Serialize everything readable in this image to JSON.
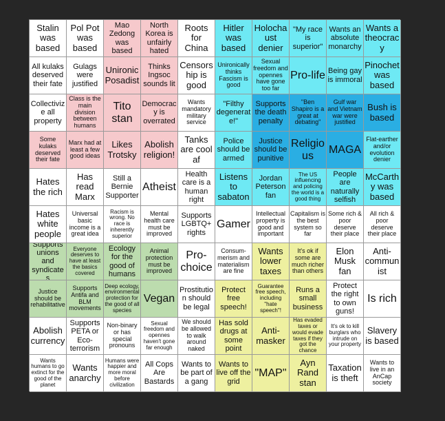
{
  "grid": {
    "rows": [
      [
        "Stalin was based",
        "Pol Pot was based",
        "Mao Zedong was based",
        "North Korea is unfairly hated",
        "Roots for China",
        "Hitler was based",
        "Holochaust denier",
        "\"My race is superior\"",
        "Wants an absolute monarchy",
        "Wants a theocracy"
      ],
      [
        "All kulaks deserved their fate",
        "Gulags were justified",
        "Unironic Posadist",
        "Thinks Ingsoc sounds lit",
        "Censorship is good",
        "Unironically thinks Fascism is good",
        "Sexual freedom and opennes have gone too far",
        "Pro-life",
        "Being gay is immoral",
        "Pinochet was based"
      ],
      [
        "Collectivize all property",
        "Class is the main division between humans",
        "Tito stan",
        "Democracy is overrated",
        "Wants mandatory military service",
        "\"Filthy degenerate!\"",
        "Supports the death penalty",
        "\"Ben Shapiro is a great at debating\"",
        "Gulf war and Vietnam war were justified",
        "Bush is based"
      ],
      [
        "Some kulaks deserved their fate",
        "Marx had at least a few good ideas",
        "Likes Trotsky",
        "Abolish religion!",
        "Tanks are cool af",
        "Police should be armed",
        "Justice should be punitive",
        "Religious",
        "MAGA",
        "Flat-earther and/or evolution denier"
      ],
      [
        "Hates the rich",
        "Has read Marx",
        "Still a Bernie Supporter",
        "Atheist",
        "Health care is a human right",
        "Listens to sabaton",
        "Jordan Peterson fan",
        "The US influencing and policing the world is a good thing",
        "People are naturally selfish",
        "McCarthy was based"
      ],
      [
        "Hates white people",
        "Universal basic income is a great idea",
        "Racism is wrong. No race is inherently superior",
        "Mental health care must be improved",
        "Supports LGBTQ+ rights",
        "Gamer",
        "Intellectual property is good and important",
        "Capitalism is the best system so far",
        "Some rich & poor deserve their place",
        "All rich & poor deserve their place"
      ],
      [
        "Supports unions and syndicates",
        "Everyone deserves to have at least the basics covered",
        "Ecology for the good of humans",
        "Animal protection must be improved",
        "Pro-choice",
        "Consum-merism and materialism are fine",
        "Wants lower taxes",
        "It's ok if some are much richer than others",
        "Elon Musk fan",
        "Anti-communist"
      ],
      [
        "Justice should be rehabilitative",
        "Supports Antifa and BLM movements",
        "Deep ecology, environmental protection for the good of all species",
        "Vegan",
        "Prostitution should be legal",
        "Protect free speech!",
        "Guarantee free speech, including \"hate speech\"!",
        "Runs a small business",
        "Protect the right to own guns!",
        "Is rich"
      ],
      [
        "Abolish currency",
        "Supports PETA or Eco-terrorism",
        "Non-binary or has special pronouns",
        "Sexual freedom and opennes haven't gone far enough",
        "We should be allowed to walk around naked",
        "Has sold drugs at some point",
        "Anti-masker",
        "Has evaded taxes or would evade taxes if they got the chance",
        "It's ok to kill burglars who intrude on your property",
        "Slavery is based"
      ],
      [
        "Wants humans to go extinct for the good of the planet",
        "Wants anarchy",
        "Humans were happier and more moral before civilization",
        "All Cops Are Bastards",
        "Wants to be part of a gang",
        "Wants to live off the grid",
        "\"MAP\"",
        "Ayn Rand stan",
        "Taxation is theft",
        "Wants to live in an AnCap society"
      ]
    ]
  }
}
